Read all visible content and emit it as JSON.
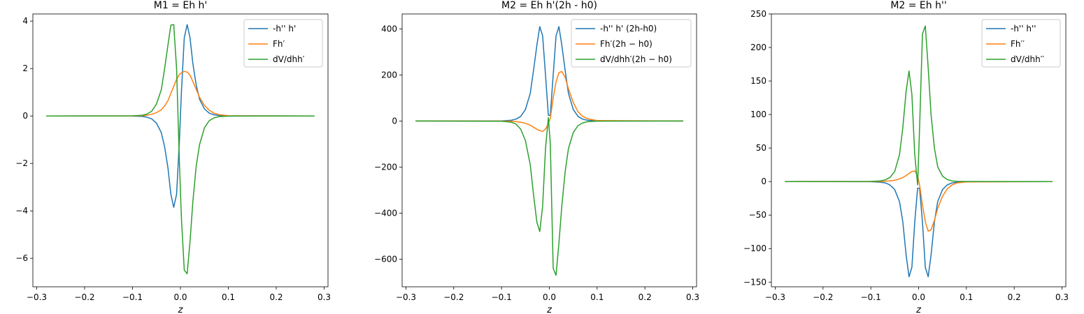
{
  "colors": {
    "blue": "#1f77b4",
    "orange": "#ff7f0e",
    "green": "#2ca02c"
  },
  "chart_data": [
    {
      "type": "line",
      "title": "M1 = Eh h'",
      "xlabel": "z",
      "ylabel": "",
      "xlim": [
        -0.308,
        0.308
      ],
      "ylim": [
        -7.2,
        4.3
      ],
      "xticks": [
        -0.3,
        -0.2,
        -0.1,
        0.0,
        0.1,
        0.2,
        0.3
      ],
      "xtick_labels": [
        "−0.3",
        "−0.2",
        "−0.1",
        "0.0",
        "0.1",
        "0.2",
        "0.3"
      ],
      "yticks": [
        -6,
        -4,
        -2,
        0,
        2,
        4
      ],
      "ytick_labels": [
        "−6",
        "−4",
        "−2",
        "0",
        "2",
        "4"
      ],
      "grid": false,
      "legend": "top-right",
      "x": [
        -0.28,
        -0.1,
        -0.08,
        -0.07,
        -0.06,
        -0.05,
        -0.04,
        -0.033,
        -0.026,
        -0.02,
        -0.014,
        -0.008,
        -0.002,
        0.002,
        0.008,
        0.014,
        0.02,
        0.026,
        0.033,
        0.04,
        0.05,
        0.06,
        0.07,
        0.08,
        0.1,
        0.28
      ],
      "series": [
        {
          "name": "-h'' h'",
          "color": "#1f77b4",
          "values": [
            0,
            -0.003,
            -0.02,
            -0.05,
            -0.12,
            -0.3,
            -0.7,
            -1.3,
            -2.2,
            -3.3,
            -3.85,
            -3.3,
            -1.0,
            1.0,
            3.3,
            3.85,
            3.3,
            2.2,
            1.3,
            0.7,
            0.3,
            0.12,
            0.05,
            0.02,
            0.003,
            0
          ]
        },
        {
          "name": "Fh′",
          "color": "#ff7f0e",
          "values": [
            0,
            0.003,
            0.01,
            0.03,
            0.07,
            0.14,
            0.26,
            0.42,
            0.65,
            0.95,
            1.25,
            1.55,
            1.75,
            1.82,
            1.88,
            1.85,
            1.72,
            1.45,
            1.12,
            0.78,
            0.45,
            0.24,
            0.12,
            0.06,
            0.01,
            0
          ]
        },
        {
          "name": "dV/dhh′",
          "color": "#2ca02c",
          "values": [
            0,
            0.005,
            0.03,
            0.08,
            0.2,
            0.5,
            1.1,
            2.0,
            3.0,
            3.83,
            3.85,
            2.0,
            -2.0,
            -4.3,
            -6.5,
            -6.65,
            -5.3,
            -3.6,
            -2.1,
            -1.2,
            -0.5,
            -0.2,
            -0.08,
            -0.03,
            -0.005,
            0
          ]
        }
      ]
    },
    {
      "type": "line",
      "title": "M2 = Eh h'(2h - h0)",
      "xlabel": "z",
      "ylabel": "",
      "xlim": [
        -0.308,
        0.308
      ],
      "ylim": [
        -720,
        465
      ],
      "xticks": [
        -0.3,
        -0.2,
        -0.1,
        0.0,
        0.1,
        0.2,
        0.3
      ],
      "xtick_labels": [
        "−0.3",
        "−0.2",
        "−0.1",
        "0.0",
        "0.1",
        "0.2",
        "0.3"
      ],
      "yticks": [
        -600,
        -400,
        -200,
        0,
        200,
        400
      ],
      "ytick_labels": [
        "−600",
        "−400",
        "−200",
        "0",
        "200",
        "400"
      ],
      "grid": false,
      "legend": "top-right",
      "x": [
        -0.28,
        -0.1,
        -0.08,
        -0.07,
        -0.06,
        -0.05,
        -0.04,
        -0.033,
        -0.026,
        -0.02,
        -0.014,
        -0.008,
        -0.002,
        0.002,
        0.008,
        0.014,
        0.02,
        0.026,
        0.033,
        0.04,
        0.05,
        0.06,
        0.07,
        0.08,
        0.1,
        0.28
      ],
      "series": [
        {
          "name": "-h'' h' (2h-h0)",
          "color": "#1f77b4",
          "values": [
            0,
            0.5,
            3,
            8,
            20,
            50,
            120,
            220,
            330,
            410,
            370,
            200,
            25,
            25,
            200,
            370,
            410,
            330,
            220,
            120,
            50,
            20,
            8,
            3,
            0.5,
            0
          ]
        },
        {
          "name": "Fh′(2h − h0)",
          "color": "#ff7f0e",
          "values": [
            0,
            -0.2,
            -1,
            -2.5,
            -5,
            -10,
            -18,
            -27,
            -36,
            -42,
            -45,
            -35,
            -12,
            12,
            100,
            170,
            210,
            215,
            190,
            140,
            80,
            40,
            20,
            10,
            2,
            0
          ]
        },
        {
          "name": "dV/dhh′(2h − h0)",
          "color": "#2ca02c",
          "values": [
            0,
            -0.8,
            -5,
            -13,
            -35,
            -85,
            -190,
            -320,
            -440,
            -480,
            -370,
            -120,
            15,
            -100,
            -640,
            -670,
            -530,
            -370,
            -220,
            -120,
            -50,
            -20,
            -8,
            -3,
            -0.5,
            0
          ]
        }
      ]
    },
    {
      "type": "line",
      "title": "M2 = Eh h''",
      "xlabel": "z",
      "ylabel": "",
      "xlim": [
        -0.308,
        0.308
      ],
      "ylim": [
        -157,
        250
      ],
      "xticks": [
        -0.3,
        -0.2,
        -0.1,
        0.0,
        0.1,
        0.2,
        0.3
      ],
      "xtick_labels": [
        "−0.3",
        "−0.2",
        "−0.1",
        "0.0",
        "0.1",
        "0.2",
        "0.3"
      ],
      "yticks": [
        -150,
        -100,
        -50,
        0,
        50,
        100,
        150,
        200,
        250
      ],
      "ytick_labels": [
        "−150",
        "−100",
        "−50",
        "0",
        "50",
        "100",
        "150",
        "200",
        "250"
      ],
      "grid": false,
      "legend": "top-right",
      "x": [
        -0.28,
        -0.1,
        -0.08,
        -0.07,
        -0.06,
        -0.05,
        -0.04,
        -0.033,
        -0.026,
        -0.02,
        -0.014,
        -0.008,
        -0.002,
        0.002,
        0.008,
        0.014,
        0.02,
        0.026,
        0.033,
        0.04,
        0.05,
        0.06,
        0.07,
        0.08,
        0.1,
        0.28
      ],
      "series": [
        {
          "name": "-h'' h''",
          "color": "#1f77b4",
          "values": [
            0,
            -0.2,
            -1,
            -2,
            -5,
            -12,
            -30,
            -60,
            -110,
            -142,
            -128,
            -60,
            -10,
            -10,
            -60,
            -128,
            -142,
            -110,
            -60,
            -30,
            -12,
            -5,
            -2,
            -1,
            -0.2,
            0
          ]
        },
        {
          "name": "Fh′′",
          "color": "#ff7f0e",
          "values": [
            0,
            0.05,
            0.2,
            0.5,
            1,
            2,
            4,
            6,
            9,
            12,
            15,
            16,
            8,
            -5,
            -35,
            -60,
            -74,
            -72,
            -58,
            -40,
            -22,
            -11,
            -5,
            -2,
            -0.5,
            0
          ]
        },
        {
          "name": "dV/dhh′′",
          "color": "#2ca02c",
          "values": [
            0,
            0.2,
            1,
            2.5,
            6,
            15,
            40,
            80,
            135,
            165,
            130,
            40,
            -5,
            80,
            220,
            232,
            170,
            100,
            50,
            22,
            8,
            3,
            1,
            0.3,
            0.05,
            0
          ]
        }
      ]
    }
  ]
}
